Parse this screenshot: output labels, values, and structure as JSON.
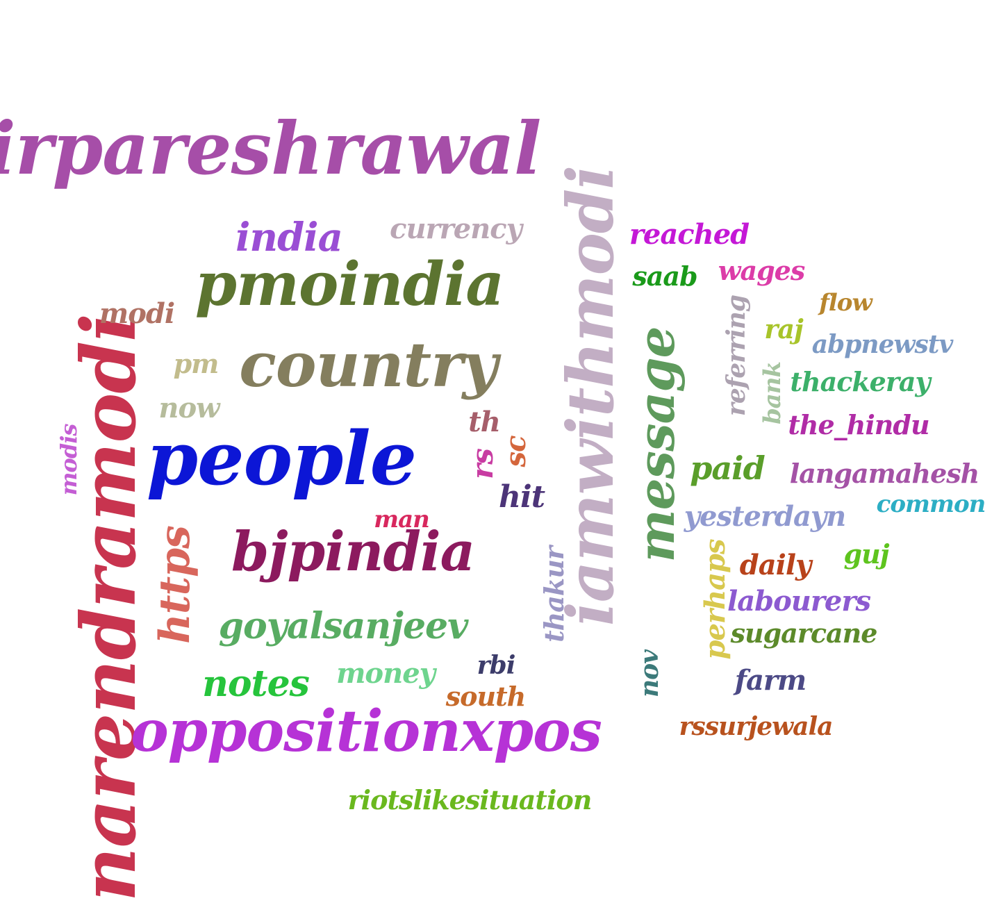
{
  "words": [
    {
      "text": "sirpareshrawal",
      "color": "#a64ea8",
      "orientation": "horizontal"
    },
    {
      "text": "narendramodi",
      "color": "#c8344f",
      "orientation": "vertical"
    },
    {
      "text": "iamwithmodi",
      "color": "#c2aec4",
      "orientation": "vertical"
    },
    {
      "text": "people",
      "color": "#0c16d6",
      "orientation": "horizontal"
    },
    {
      "text": "oppositionxpos",
      "color": "#b632d6",
      "orientation": "horizontal"
    },
    {
      "text": "pmoindia",
      "color": "#5c7430",
      "orientation": "horizontal"
    },
    {
      "text": "country",
      "color": "#847e5e",
      "orientation": "horizontal"
    },
    {
      "text": "bjpindia",
      "color": "#8c1a5e",
      "orientation": "horizontal"
    },
    {
      "text": "message",
      "color": "#5e9a5c",
      "orientation": "vertical"
    },
    {
      "text": "https",
      "color": "#d8665c",
      "orientation": "vertical"
    },
    {
      "text": "goyalsanjeev",
      "color": "#58ac62",
      "orientation": "horizontal"
    },
    {
      "text": "india",
      "color": "#9a4ed4",
      "orientation": "horizontal"
    },
    {
      "text": "notes",
      "color": "#26c43c",
      "orientation": "horizontal"
    },
    {
      "text": "riotslikesituation",
      "color": "#6ab81e",
      "orientation": "horizontal"
    },
    {
      "text": "currency",
      "color": "#baa6b4",
      "orientation": "horizontal"
    },
    {
      "text": "modi",
      "color": "#b07264",
      "orientation": "horizontal"
    },
    {
      "text": "pm",
      "color": "#c2bc8c",
      "orientation": "horizontal"
    },
    {
      "text": "now",
      "color": "#b6bc9c",
      "orientation": "horizontal"
    },
    {
      "text": "modis",
      "color": "#c45ed4",
      "orientation": "vertical"
    },
    {
      "text": "th",
      "color": "#a65e6a",
      "orientation": "horizontal"
    },
    {
      "text": "rs",
      "color": "#c83ca2",
      "orientation": "vertical"
    },
    {
      "text": "sc",
      "color": "#d4663c",
      "orientation": "vertical"
    },
    {
      "text": "hit",
      "color": "#4c3478",
      "orientation": "horizontal"
    },
    {
      "text": "man",
      "color": "#d8285e",
      "orientation": "horizontal"
    },
    {
      "text": "thakur",
      "color": "#9a96c4",
      "orientation": "vertical"
    },
    {
      "text": "money",
      "color": "#6ed48e",
      "orientation": "horizontal"
    },
    {
      "text": "rbi",
      "color": "#3c3c6a",
      "orientation": "horizontal"
    },
    {
      "text": "south",
      "color": "#c66a2a",
      "orientation": "horizontal"
    },
    {
      "text": "reached",
      "color": "#c418d6",
      "orientation": "horizontal"
    },
    {
      "text": "saab",
      "color": "#1a9a1a",
      "orientation": "horizontal"
    },
    {
      "text": "wages",
      "color": "#dc3ca8",
      "orientation": "horizontal"
    },
    {
      "text": "flow",
      "color": "#b8862e",
      "orientation": "horizontal"
    },
    {
      "text": "referring",
      "color": "#aca2b0",
      "orientation": "vertical"
    },
    {
      "text": "raj",
      "color": "#a8c42a",
      "orientation": "horizontal"
    },
    {
      "text": "abpnewstv",
      "color": "#7c9ac4",
      "orientation": "horizontal"
    },
    {
      "text": "bank",
      "color": "#a6c4a0",
      "orientation": "vertical"
    },
    {
      "text": "thackeray",
      "color": "#3cb06a",
      "orientation": "horizontal"
    },
    {
      "text": "the_hindu",
      "color": "#b02ca6",
      "orientation": "horizontal"
    },
    {
      "text": "paid",
      "color": "#5a9e2a",
      "orientation": "horizontal"
    },
    {
      "text": "langamahesh",
      "color": "#a452a6",
      "orientation": "horizontal"
    },
    {
      "text": "common",
      "color": "#2caec4",
      "orientation": "horizontal"
    },
    {
      "text": "yesterdayn",
      "color": "#909ad0",
      "orientation": "horizontal"
    },
    {
      "text": "guj",
      "color": "#5ec41e",
      "orientation": "horizontal"
    },
    {
      "text": "perhaps",
      "color": "#d8c84e",
      "orientation": "vertical"
    },
    {
      "text": "daily",
      "color": "#b8421a",
      "orientation": "horizontal"
    },
    {
      "text": "labourers",
      "color": "#8c5ad0",
      "orientation": "horizontal"
    },
    {
      "text": "sugarcane",
      "color": "#5c8a2a",
      "orientation": "horizontal"
    },
    {
      "text": "nov",
      "color": "#3c7a7a",
      "orientation": "vertical"
    },
    {
      "text": "farm",
      "color": "#4c4a86",
      "orientation": "horizontal"
    },
    {
      "text": "rssurjewala",
      "color": "#b8521e",
      "orientation": "horizontal"
    }
  ]
}
